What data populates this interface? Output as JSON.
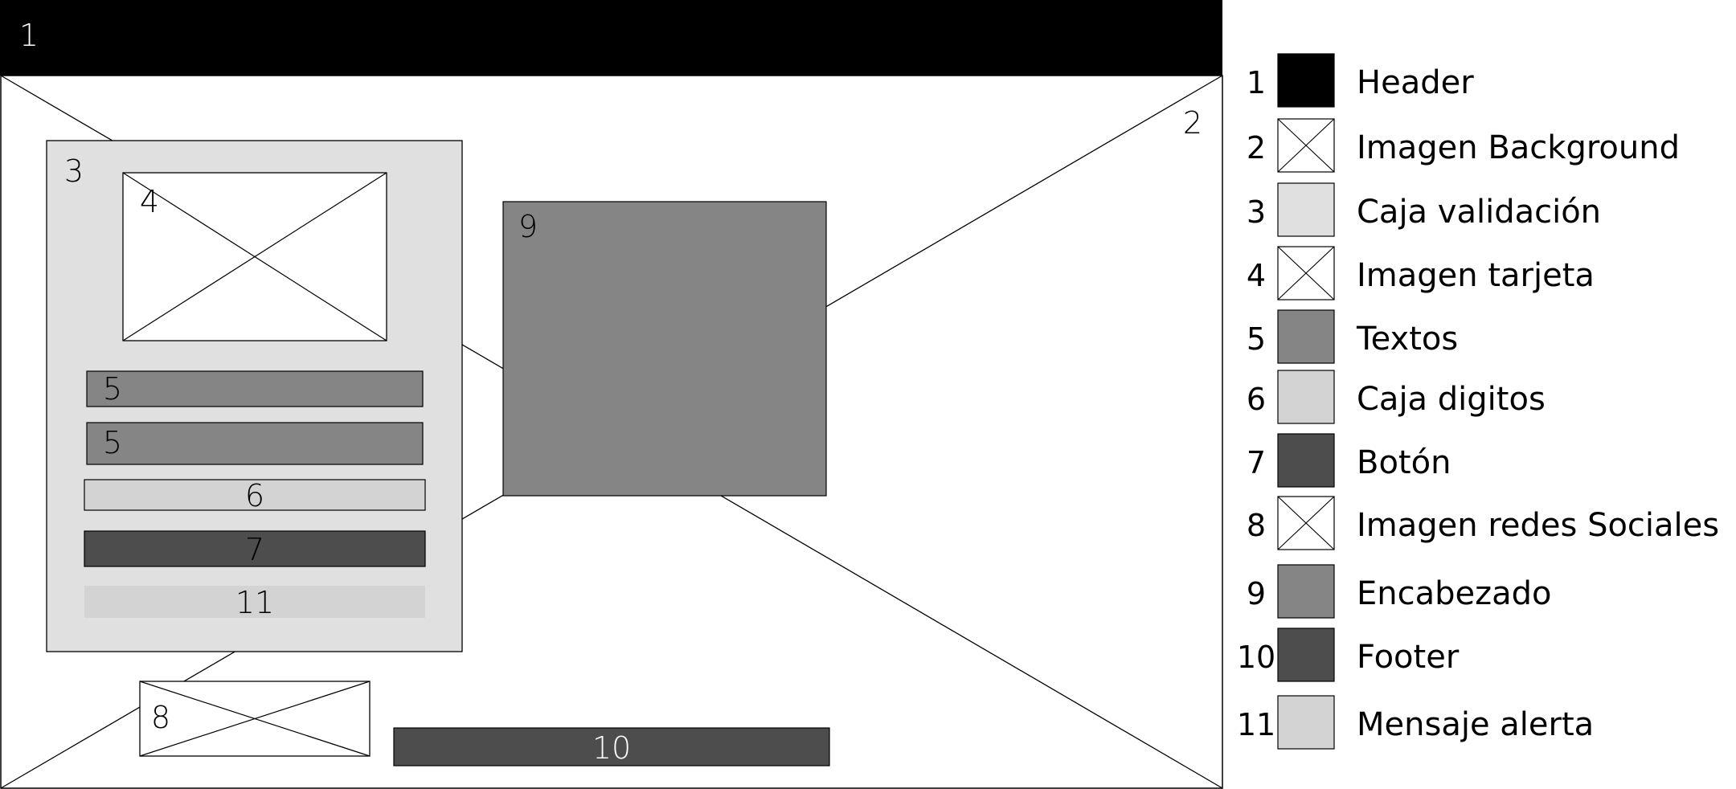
{
  "wireframe": {
    "header": {
      "number": "1"
    },
    "background_image": {
      "number": "2"
    },
    "validation_box": {
      "number": "3"
    },
    "card_image": {
      "number": "4"
    },
    "text_1": {
      "number": "5"
    },
    "text_2": {
      "number": "5"
    },
    "digits_box": {
      "number": "6"
    },
    "button": {
      "number": "7"
    },
    "alert_message": {
      "number": "11"
    },
    "social_image": {
      "number": "8"
    },
    "heading_block": {
      "number": "9"
    },
    "footer": {
      "number": "10"
    }
  },
  "legend": {
    "items": [
      {
        "number": "1",
        "label": "Header",
        "swatch": "#000000",
        "crossed": false
      },
      {
        "number": "2",
        "label": "Imagen Background",
        "swatch": "#ffffff",
        "crossed": true
      },
      {
        "number": "3",
        "label": "Caja validación",
        "swatch": "#e0e0e0",
        "crossed": false
      },
      {
        "number": "4",
        "label": "Imagen tarjeta",
        "swatch": "#ffffff",
        "crossed": true
      },
      {
        "number": "5",
        "label": "Textos",
        "swatch": "#858585",
        "crossed": false
      },
      {
        "number": "6",
        "label": "Caja digitos",
        "swatch": "#d3d3d3",
        "crossed": false
      },
      {
        "number": "7",
        "label": "Botón",
        "swatch": "#4d4d4d",
        "crossed": false
      },
      {
        "number": "8",
        "label": "Imagen redes Sociales",
        "swatch": "#ffffff",
        "crossed": true
      },
      {
        "number": "9",
        "label": "Encabezado",
        "swatch": "#858585",
        "crossed": false
      },
      {
        "number": "10",
        "label": "Footer",
        "swatch": "#4d4d4d",
        "crossed": false
      },
      {
        "number": "11",
        "label": "Mensaje alerta",
        "swatch": "#d3d3d3",
        "crossed": false
      }
    ]
  },
  "colors": {
    "header": "#000000",
    "validation_box": "#e0e0e0",
    "text_block": "#858585",
    "digits_box": "#d3d3d3",
    "button": "#4d4d4d",
    "heading_block": "#858585",
    "footer": "#4d4d4d",
    "alert_message": "#d3d3d3",
    "outline": "#000000",
    "label_light": "#ffffff"
  }
}
